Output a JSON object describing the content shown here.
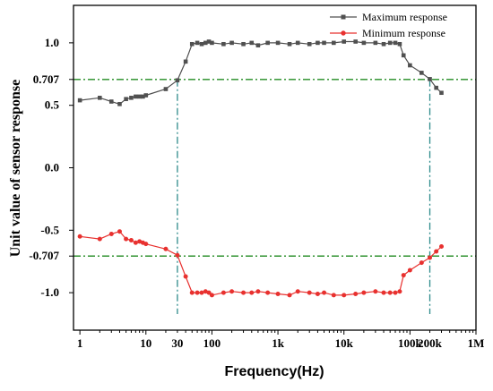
{
  "chart_data": {
    "type": "line",
    "xlabel": "Frequency(Hz)",
    "ylabel": "Unit value of sensor response",
    "xscale": "log",
    "xlim": [
      0.8,
      1000000
    ],
    "ylim": [
      -1.3,
      1.3
    ],
    "grid": false,
    "legend_position": "top-right",
    "x_ticks": [
      {
        "value": 1,
        "label": "1"
      },
      {
        "value": 10,
        "label": "10"
      },
      {
        "value": 30,
        "label": "30"
      },
      {
        "value": 100,
        "label": "100"
      },
      {
        "value": 1000,
        "label": "1k"
      },
      {
        "value": 10000,
        "label": "10k"
      },
      {
        "value": 100000,
        "label": "100k"
      },
      {
        "value": 200000,
        "label": "200k"
      },
      {
        "value": 1000000,
        "label": "1M"
      }
    ],
    "y_ticks": [
      {
        "value": 1.0,
        "label": "1.0"
      },
      {
        "value": 0.707,
        "label": "0.707"
      },
      {
        "value": 0.5,
        "label": "0.5"
      },
      {
        "value": 0.0,
        "label": "0.0"
      },
      {
        "value": -0.5,
        "label": "-0.5"
      },
      {
        "value": -0.707,
        "label": "-0.707"
      },
      {
        "value": -1.0,
        "label": "-1.0"
      }
    ],
    "reference_lines": {
      "horizontal": [
        0.707,
        -0.707
      ],
      "vertical": [
        30,
        200000
      ],
      "color": "#228B22",
      "vertical_color": "#2E8B8B",
      "style": "dash-dot"
    },
    "series": [
      {
        "name": "Maximum response",
        "color": "#505050",
        "marker": "square",
        "x": [
          1,
          2,
          3,
          4,
          5,
          6,
          7,
          8,
          9,
          10,
          20,
          30,
          40,
          50,
          60,
          70,
          80,
          90,
          100,
          150,
          200,
          300,
          400,
          500,
          700,
          1000,
          1500,
          2000,
          3000,
          4000,
          5000,
          7000,
          10000,
          15000,
          20000,
          30000,
          40000,
          50000,
          60000,
          70000,
          80000,
          100000,
          150000,
          200000,
          250000,
          300000
        ],
        "y": [
          0.54,
          0.56,
          0.53,
          0.51,
          0.55,
          0.56,
          0.57,
          0.57,
          0.57,
          0.58,
          0.63,
          0.7,
          0.85,
          0.99,
          1.0,
          0.99,
          1.0,
          1.01,
          1.0,
          0.99,
          1.0,
          0.99,
          1.0,
          0.98,
          1.0,
          1.0,
          0.99,
          1.0,
          0.99,
          1.0,
          1.0,
          1.0,
          1.01,
          1.01,
          1.0,
          1.0,
          0.99,
          1.0,
          1.0,
          0.99,
          0.9,
          0.82,
          0.76,
          0.71,
          0.64,
          0.6
        ]
      },
      {
        "name": "Minimum response",
        "color": "#E8312F",
        "marker": "circle",
        "x": [
          1,
          2,
          3,
          4,
          5,
          6,
          7,
          8,
          9,
          10,
          20,
          30,
          40,
          50,
          60,
          70,
          80,
          90,
          100,
          150,
          200,
          300,
          400,
          500,
          700,
          1000,
          1500,
          2000,
          3000,
          4000,
          5000,
          7000,
          10000,
          15000,
          20000,
          30000,
          40000,
          50000,
          60000,
          70000,
          80000,
          100000,
          150000,
          200000,
          250000,
          300000
        ],
        "y": [
          -0.55,
          -0.57,
          -0.53,
          -0.51,
          -0.57,
          -0.58,
          -0.6,
          -0.59,
          -0.6,
          -0.61,
          -0.65,
          -0.7,
          -0.87,
          -1.0,
          -1.0,
          -1.0,
          -0.99,
          -1.0,
          -1.02,
          -1.0,
          -0.99,
          -1.0,
          -1.0,
          -0.99,
          -1.0,
          -1.01,
          -1.02,
          -0.99,
          -1.0,
          -1.01,
          -1.0,
          -1.02,
          -1.02,
          -1.01,
          -1.0,
          -0.99,
          -1.0,
          -1.0,
          -1.0,
          -0.99,
          -0.86,
          -0.82,
          -0.76,
          -0.72,
          -0.67,
          -0.63
        ]
      }
    ]
  }
}
